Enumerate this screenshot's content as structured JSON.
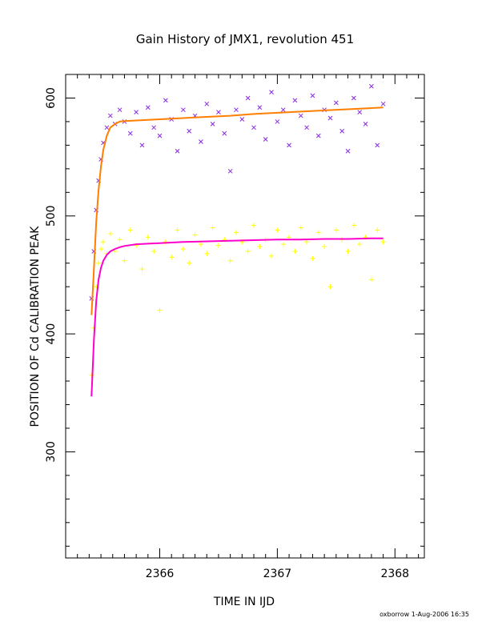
{
  "chart_data": {
    "type": "scatter",
    "title": "Gain History of JMX1, revolution 451",
    "xlabel": "TIME IN IJD",
    "ylabel": "POSITION OF Cd CALIBRATION PEAK",
    "footer": "oxborrow  1-Aug-2006 16:35",
    "xlim": [
      2365.2,
      2368.25
    ],
    "ylim": [
      210,
      620
    ],
    "x_ticks": [
      2366,
      2367,
      2368
    ],
    "y_ticks": [
      300,
      400,
      500,
      600
    ],
    "x_tick_labels": [
      "2366",
      "2367",
      "2368"
    ],
    "y_tick_labels": [
      "300",
      "400",
      "500",
      "600"
    ],
    "grid": false,
    "series": [
      {
        "marker": "x",
        "color": "#8a2be2",
        "x": [
          2365.42,
          2365.44,
          2365.46,
          2365.48,
          2365.5,
          2365.52,
          2365.55,
          2365.58,
          2365.62,
          2365.66,
          2365.7,
          2365.75,
          2365.8,
          2365.85,
          2365.9,
          2365.95,
          2366.0,
          2366.05,
          2366.1,
          2366.15,
          2366.2,
          2366.25,
          2366.3,
          2366.35,
          2366.4,
          2366.45,
          2366.5,
          2366.55,
          2366.6,
          2366.65,
          2366.7,
          2366.75,
          2366.8,
          2366.85,
          2366.9,
          2366.95,
          2367.0,
          2367.05,
          2367.1,
          2367.15,
          2367.2,
          2367.25,
          2367.3,
          2367.35,
          2367.4,
          2367.45,
          2367.5,
          2367.55,
          2367.6,
          2367.65,
          2367.7,
          2367.75,
          2367.8,
          2367.85,
          2367.9
        ],
        "y": [
          430,
          470,
          505,
          530,
          548,
          562,
          575,
          585,
          578,
          590,
          580,
          570,
          588,
          560,
          592,
          575,
          568,
          598,
          582,
          555,
          590,
          572,
          585,
          563,
          595,
          578,
          588,
          570,
          538,
          590,
          582,
          600,
          575,
          592,
          565,
          605,
          580,
          590,
          560,
          598,
          585,
          575,
          602,
          568,
          590,
          583,
          596,
          572,
          555,
          600,
          588,
          578,
          610,
          560,
          595
        ]
      },
      {
        "marker": "+",
        "color": "#ffff00",
        "x": [
          2365.42,
          2365.44,
          2365.46,
          2365.48,
          2365.5,
          2365.52,
          2365.55,
          2365.58,
          2365.62,
          2365.66,
          2365.7,
          2365.75,
          2365.8,
          2365.85,
          2365.9,
          2365.95,
          2366.0,
          2366.05,
          2366.1,
          2366.15,
          2366.2,
          2366.25,
          2366.3,
          2366.35,
          2366.4,
          2366.45,
          2366.5,
          2366.55,
          2366.6,
          2366.65,
          2366.7,
          2366.75,
          2366.8,
          2366.85,
          2366.9,
          2366.95,
          2367.0,
          2367.05,
          2367.1,
          2367.15,
          2367.2,
          2367.25,
          2367.3,
          2367.35,
          2367.4,
          2367.45,
          2367.5,
          2367.55,
          2367.6,
          2367.65,
          2367.7,
          2367.75,
          2367.8,
          2367.85,
          2367.9
        ],
        "y": [
          365,
          405,
          440,
          460,
          472,
          478,
          468,
          485,
          470,
          480,
          462,
          488,
          475,
          455,
          482,
          470,
          420,
          478,
          465,
          488,
          472,
          460,
          484,
          476,
          468,
          490,
          475,
          480,
          462,
          486,
          478,
          470,
          492,
          474,
          480,
          466,
          488,
          476,
          482,
          470,
          490,
          478,
          464,
          486,
          474,
          440,
          488,
          480,
          470,
          492,
          476,
          482,
          446,
          488,
          478
        ]
      },
      {
        "marker": "line",
        "color": "#ff7f00",
        "x": [
          2365.42,
          2365.44,
          2365.46,
          2365.48,
          2365.5,
          2365.52,
          2365.55,
          2365.58,
          2365.62,
          2365.66,
          2365.7,
          2365.8,
          2365.9,
          2366.0,
          2366.2,
          2366.4,
          2366.6,
          2366.8,
          2367.0,
          2367.2,
          2367.4,
          2367.6,
          2367.8,
          2367.9
        ],
        "y": [
          416,
          455,
          495,
          522,
          542,
          556,
          568,
          575,
          578,
          580,
          580.5,
          581,
          581.5,
          582,
          583,
          584,
          585,
          586.5,
          587.5,
          588.5,
          589.5,
          590.5,
          591.5,
          592
        ]
      },
      {
        "marker": "line",
        "color": "#ff00cc",
        "x": [
          2365.42,
          2365.44,
          2365.46,
          2365.48,
          2365.5,
          2365.52,
          2365.55,
          2365.58,
          2365.62,
          2365.66,
          2365.7,
          2365.8,
          2365.9,
          2366.0,
          2366.2,
          2366.4,
          2366.6,
          2366.8,
          2367.0,
          2367.2,
          2367.4,
          2367.6,
          2367.8,
          2367.9
        ],
        "y": [
          347,
          395,
          428,
          446,
          456,
          462,
          467,
          470,
          472,
          473.5,
          474.5,
          476,
          476.5,
          477,
          478,
          478.5,
          479,
          479.5,
          480,
          480,
          480.5,
          480.5,
          481,
          481
        ]
      }
    ]
  }
}
